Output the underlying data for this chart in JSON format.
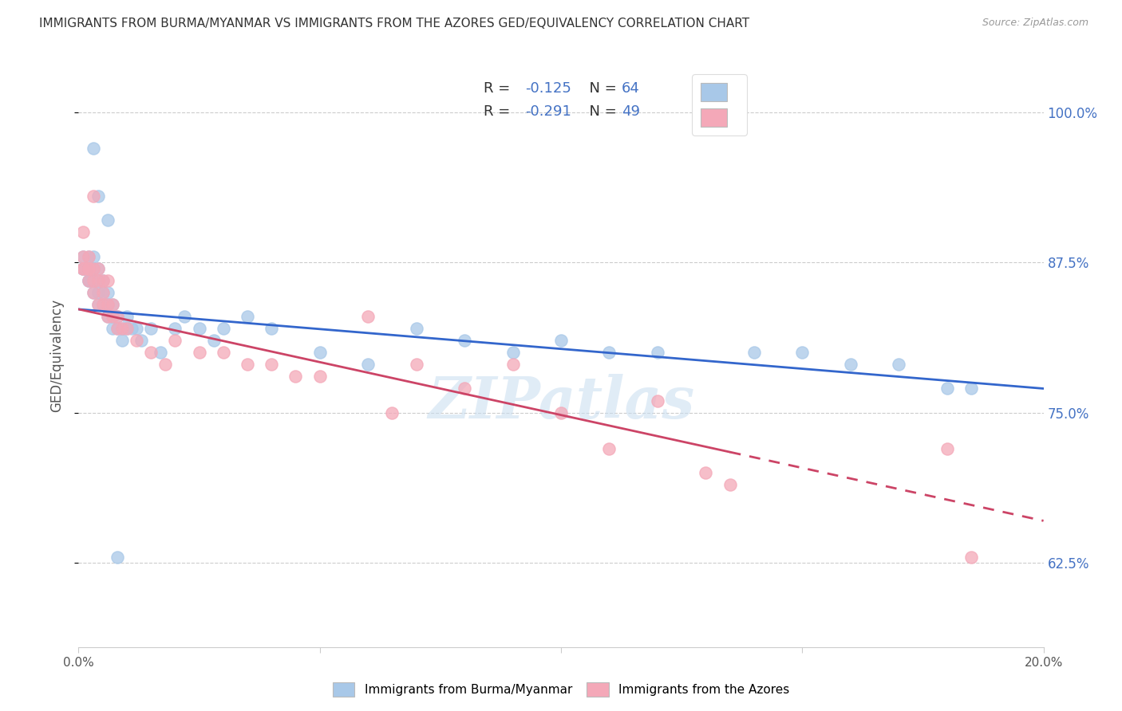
{
  "title": "IMMIGRANTS FROM BURMA/MYANMAR VS IMMIGRANTS FROM THE AZORES GED/EQUIVALENCY CORRELATION CHART",
  "source": "Source: ZipAtlas.com",
  "ylabel": "GED/Equivalency",
  "xlim": [
    0.0,
    0.2
  ],
  "ylim": [
    0.555,
    1.04
  ],
  "yticks": [
    0.625,
    0.75,
    0.875,
    1.0
  ],
  "legend_blue_r": "-0.125",
  "legend_blue_n": "64",
  "legend_pink_r": "-0.291",
  "legend_pink_n": "49",
  "legend_blue_label": "Immigrants from Burma/Myanmar",
  "legend_pink_label": "Immigrants from the Azores",
  "blue_color": "#a8c8e8",
  "pink_color": "#f4a8b8",
  "blue_line_color": "#3366cc",
  "pink_line_color": "#cc4466",
  "watermark": "ZIPatlas",
  "blue_scatter_x": [
    0.001,
    0.001,
    0.001,
    0.001,
    0.002,
    0.002,
    0.002,
    0.002,
    0.002,
    0.003,
    0.003,
    0.003,
    0.003,
    0.003,
    0.004,
    0.004,
    0.004,
    0.004,
    0.005,
    0.005,
    0.005,
    0.005,
    0.006,
    0.006,
    0.006,
    0.007,
    0.007,
    0.007,
    0.008,
    0.008,
    0.009,
    0.009,
    0.01,
    0.01,
    0.011,
    0.012,
    0.013,
    0.015,
    0.017,
    0.02,
    0.022,
    0.025,
    0.028,
    0.03,
    0.035,
    0.04,
    0.05,
    0.06,
    0.07,
    0.08,
    0.09,
    0.1,
    0.11,
    0.12,
    0.14,
    0.15,
    0.16,
    0.17,
    0.18,
    0.185,
    0.003,
    0.004,
    0.006,
    0.008
  ],
  "blue_scatter_y": [
    0.87,
    0.87,
    0.87,
    0.88,
    0.86,
    0.86,
    0.87,
    0.88,
    0.87,
    0.85,
    0.86,
    0.87,
    0.88,
    0.87,
    0.84,
    0.85,
    0.86,
    0.87,
    0.84,
    0.85,
    0.86,
    0.84,
    0.83,
    0.84,
    0.85,
    0.82,
    0.83,
    0.84,
    0.82,
    0.83,
    0.81,
    0.82,
    0.82,
    0.83,
    0.82,
    0.82,
    0.81,
    0.82,
    0.8,
    0.82,
    0.83,
    0.82,
    0.81,
    0.82,
    0.83,
    0.82,
    0.8,
    0.79,
    0.82,
    0.81,
    0.8,
    0.81,
    0.8,
    0.8,
    0.8,
    0.8,
    0.79,
    0.79,
    0.77,
    0.77,
    0.97,
    0.93,
    0.91,
    0.63
  ],
  "pink_scatter_x": [
    0.001,
    0.001,
    0.001,
    0.001,
    0.002,
    0.002,
    0.002,
    0.002,
    0.003,
    0.003,
    0.003,
    0.003,
    0.004,
    0.004,
    0.004,
    0.005,
    0.005,
    0.005,
    0.006,
    0.006,
    0.006,
    0.007,
    0.007,
    0.008,
    0.008,
    0.009,
    0.01,
    0.012,
    0.015,
    0.018,
    0.02,
    0.025,
    0.03,
    0.035,
    0.04,
    0.045,
    0.05,
    0.06,
    0.065,
    0.07,
    0.08,
    0.09,
    0.1,
    0.11,
    0.12,
    0.13,
    0.135,
    0.18,
    0.185
  ],
  "pink_scatter_y": [
    0.87,
    0.87,
    0.88,
    0.9,
    0.86,
    0.87,
    0.87,
    0.88,
    0.85,
    0.86,
    0.87,
    0.93,
    0.84,
    0.86,
    0.87,
    0.84,
    0.85,
    0.86,
    0.83,
    0.84,
    0.86,
    0.83,
    0.84,
    0.82,
    0.83,
    0.82,
    0.82,
    0.81,
    0.8,
    0.79,
    0.81,
    0.8,
    0.8,
    0.79,
    0.79,
    0.78,
    0.78,
    0.83,
    0.75,
    0.79,
    0.77,
    0.79,
    0.75,
    0.72,
    0.76,
    0.7,
    0.69,
    0.72,
    0.63
  ],
  "blue_line_x0": 0.0,
  "blue_line_y0": 0.836,
  "blue_line_x1": 0.2,
  "blue_line_y1": 0.77,
  "pink_line_x0": 0.0,
  "pink_line_y0": 0.836,
  "pink_line_x1": 0.2,
  "pink_line_y1": 0.66
}
